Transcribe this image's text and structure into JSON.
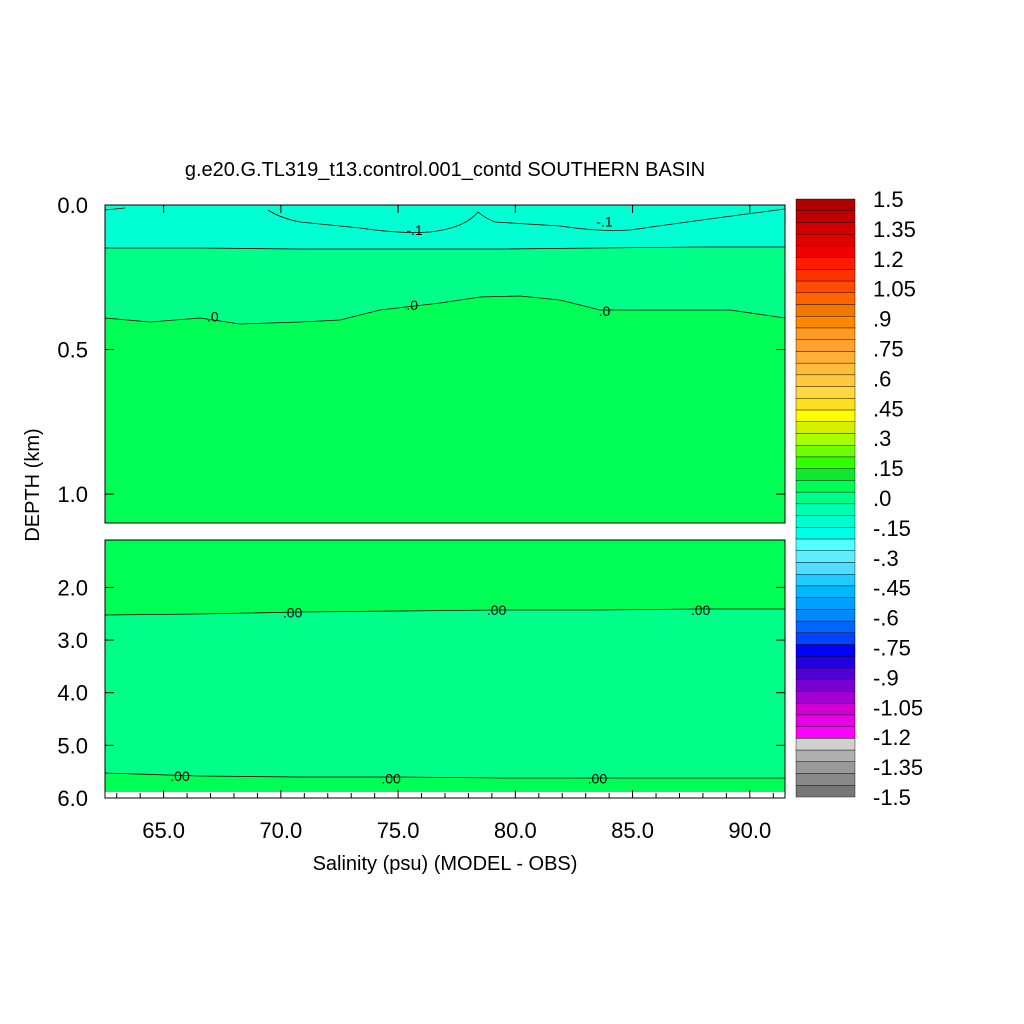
{
  "chart_data": {
    "type": "contour",
    "title": "g.e20.G.TL319_t13.control.001_contd SOUTHERN BASIN",
    "xlabel": "Salinity (psu) (MODEL - OBS)",
    "ylabel": "DEPTH (km)",
    "x_ticks": [
      "65.0",
      "70.0",
      "75.0",
      "80.0",
      "85.0",
      "90.0"
    ],
    "x_tick_values": [
      65,
      70,
      75,
      80,
      85,
      90
    ],
    "xlim": [
      62.5,
      91.5
    ],
    "panels": [
      {
        "name": "upper",
        "ylim": [
          0.0,
          1.1
        ],
        "y_ticks": [
          "0.0",
          "0.5",
          "1.0"
        ],
        "y_tick_values": [
          0.0,
          0.5,
          1.0
        ],
        "contour_labels": [
          {
            "text": "-.1",
            "x": 75.7,
            "y": 0.09
          },
          {
            "text": "-.1",
            "x": 83.8,
            "y": 0.06
          },
          {
            "text": ".0",
            "x": 67.1,
            "y": 0.39
          },
          {
            "text": ".0",
            "x": 75.6,
            "y": 0.35
          },
          {
            "text": ".0",
            "x": 83.8,
            "y": 0.37
          }
        ]
      },
      {
        "name": "lower",
        "ylim": [
          1.1,
          6.0
        ],
        "y_ticks": [
          "2.0",
          "3.0",
          "4.0",
          "5.0",
          "6.0"
        ],
        "y_tick_values": [
          2.0,
          3.0,
          4.0,
          5.0,
          6.0
        ],
        "contour_labels": [
          {
            "text": ".00",
            "x": 70.5,
            "y": 2.5
          },
          {
            "text": ".00",
            "x": 79.2,
            "y": 2.45
          },
          {
            "text": ".00",
            "x": 87.9,
            "y": 2.45
          },
          {
            "text": ".00",
            "x": 65.7,
            "y": 5.6
          },
          {
            "text": ".00",
            "x": 74.7,
            "y": 5.65
          },
          {
            "text": ".00",
            "x": 83.5,
            "y": 5.65
          }
        ]
      }
    ],
    "colorbar": {
      "labels": [
        "1.5",
        "1.35",
        "1.2",
        "1.05",
        ".9",
        ".75",
        ".6",
        ".45",
        ".3",
        ".15",
        ".0",
        "-.15",
        "-.3",
        "-.45",
        "-.6",
        "-.75",
        "-.9",
        "-1.05",
        "-1.2",
        "-1.35",
        "-1.5"
      ],
      "colors": [
        "#b00000",
        "#c00000",
        "#d00000",
        "#e00000",
        "#f00000",
        "#ff1a00",
        "#ff3300",
        "#ff4c00",
        "#ff6600",
        "#f07800",
        "#ff8800",
        "#ff9a20",
        "#ffa030",
        "#ffae38",
        "#ffbb3a",
        "#ffc840",
        "#ffd840",
        "#ffe020",
        "#ffff00",
        "#d4f000",
        "#aaff00",
        "#70ff00",
        "#30ff00",
        "#10e830",
        "#00ff55",
        "#00ff88",
        "#00ffb0",
        "#00ffd0",
        "#00ffe8",
        "#50ffff",
        "#60eeff",
        "#50ddff",
        "#20ccff",
        "#00b8ff",
        "#00a0ff",
        "#0088ff",
        "#0066ff",
        "#0044ff",
        "#0000ff",
        "#2000e0",
        "#5000d0",
        "#7a00d0",
        "#a000d0",
        "#d000d0",
        "#e800e8",
        "#ff00ff",
        "#d0d0d0",
        "#b0b0b0",
        "#999999",
        "#888888",
        "#777777"
      ]
    },
    "colors": {
      "surface": "#00ffd2",
      "upper_body": "#00ff55",
      "mid_body": "#00ff88",
      "bottom": "#00ff55"
    }
  }
}
